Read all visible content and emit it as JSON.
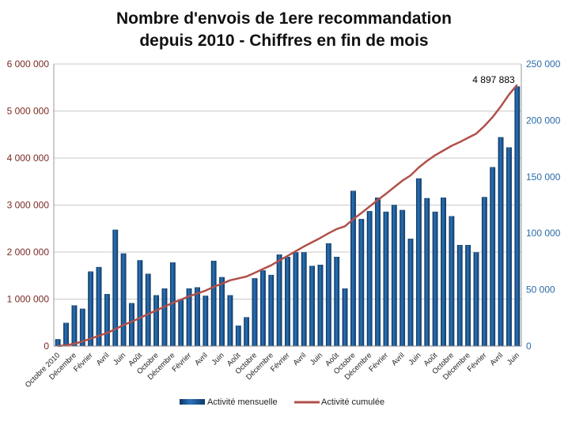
{
  "chart_data": {
    "type": "bar",
    "title_lines": [
      "Nombre d'envois de 1ere recommandation",
      "depuis 2010 - Chiffres en fin de mois"
    ],
    "xlabel": "",
    "ylabel_left": "",
    "ylabel_right": "",
    "left_axis": {
      "ylim": [
        0,
        6000000
      ],
      "ticks": [
        "0",
        "1 000 000",
        "2 000 000",
        "3 000 000",
        "4 000 000",
        "5 000 000",
        "6 000 000"
      ]
    },
    "right_axis": {
      "ylim": [
        0,
        250000
      ],
      "ticks": [
        "0",
        "50 000",
        "100 000",
        "150 000",
        "200 000",
        "250 000"
      ]
    },
    "x_tick_labels": [
      "Octobre 2010",
      "Décembre",
      "Février",
      "Avril",
      "Juin",
      "Août",
      "Octobre",
      "Décembre",
      "Février",
      "Avril",
      "Juin",
      "Août",
      "Octobre",
      "Décembre",
      "Février",
      "Avril",
      "Juin",
      "Août",
      "Octobre",
      "Décembre",
      "Février",
      "Avril",
      "Juin",
      "Août",
      "Octobre",
      "Décembre",
      "Février",
      "Avril",
      "Juin"
    ],
    "series": [
      {
        "name": "Activité mensuelle",
        "axis": "right",
        "kind": "bar",
        "values": [
          6000,
          20500,
          36000,
          33000,
          66000,
          70000,
          46000,
          103000,
          82000,
          38000,
          76000,
          64000,
          45000,
          51000,
          74000,
          41000,
          51000,
          52000,
          44500,
          75500,
          61000,
          45000,
          18000,
          25500,
          60000,
          67000,
          63000,
          81000,
          79000,
          83000,
          83000,
          71000,
          72000,
          91000,
          79000,
          51000,
          137500,
          112500,
          119500,
          131500,
          119000,
          125000,
          120500,
          95000,
          148500,
          131000,
          119000,
          131500,
          115000,
          89500,
          89500,
          83000,
          132000,
          158500,
          185000,
          176000,
          230000
        ]
      },
      {
        "name": "Activité cumulée",
        "axis": "left",
        "kind": "line",
        "color": "#b0504a",
        "values": [
          0,
          20000,
          50000,
          100000,
          160000,
          220000,
          280000,
          360000,
          450000,
          520000,
          600000,
          680000,
          760000,
          840000,
          920000,
          990000,
          1060000,
          1120000,
          1180000,
          1260000,
          1330000,
          1400000,
          1440000,
          1480000,
          1560000,
          1640000,
          1720000,
          1820000,
          1920000,
          2020000,
          2120000,
          2210000,
          2300000,
          2400000,
          2490000,
          2550000,
          2700000,
          2830000,
          2970000,
          3110000,
          3240000,
          3380000,
          3520000,
          3630000,
          3800000,
          3940000,
          4060000,
          4160000,
          4260000,
          4340000,
          4430000,
          4520000,
          4680000,
          4870000,
          5100000,
          5350000,
          5560000
        ]
      }
    ],
    "annotation": "4 897 883",
    "legend_position": "bottom",
    "grid": true,
    "colors": {
      "bar": "#1f5a96",
      "bar_dark": "#0c3461",
      "line": "#b0504a",
      "left_tick": "#7a2a22",
      "right_tick": "#2a6aa8",
      "grid": "#c9c9c9"
    }
  }
}
